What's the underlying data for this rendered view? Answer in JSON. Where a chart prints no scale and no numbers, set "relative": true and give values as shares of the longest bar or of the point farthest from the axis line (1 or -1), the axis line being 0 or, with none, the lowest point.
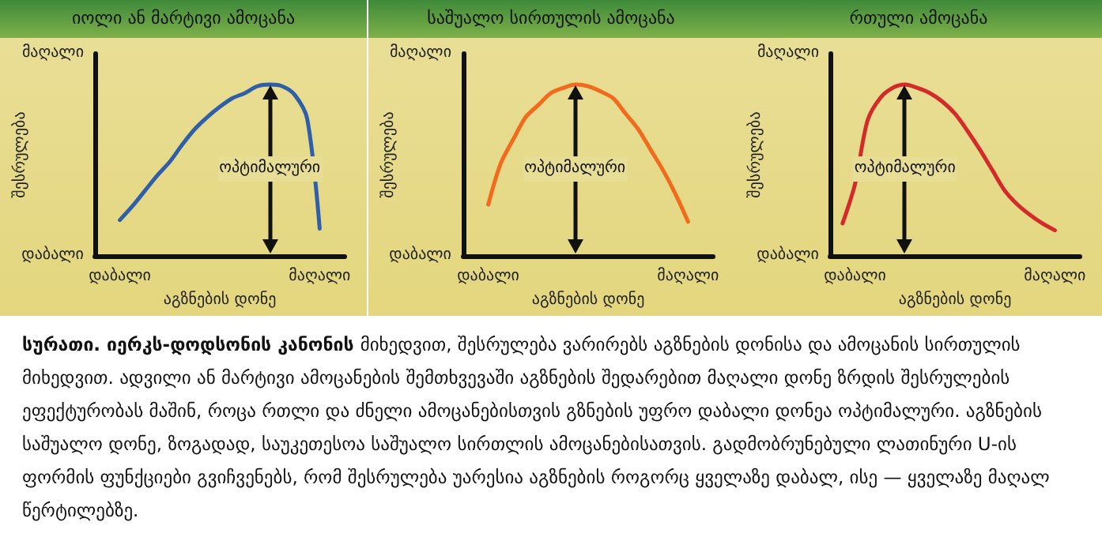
{
  "chart_data": [
    {
      "type": "line",
      "title": "იოლი ან მარტივი ამოცანა",
      "xlabel": "აგზნების დონე",
      "ylabel": "შესრულება",
      "relative": true,
      "categories": [
        null,
        null,
        "დაბალი",
        null,
        null,
        null,
        null,
        null,
        null,
        null,
        null,
        null,
        null,
        null,
        null,
        null,
        null,
        null,
        "მაღალი",
        null,
        null
      ],
      "series": [
        {
          "color": "#2f5fa8",
          "values": [
            null,
            null,
            0.21,
            0.29,
            0.38,
            0.47,
            0.55,
            0.65,
            0.74,
            0.81,
            0.87,
            0.92,
            0.95,
            0.99,
            1,
            0.99,
            0.94,
            0.8,
            0.16,
            null,
            null
          ]
        }
      ],
      "annotations": [
        "ოპტიმალური",
        "დაბალი",
        "მაღალი"
      ]
    },
    {
      "type": "line",
      "title": "საშუალო სირთულის ამოცანა",
      "xlabel": "აგზნების დონე",
      "ylabel": "შესრულება",
      "relative": true,
      "categories": [
        null,
        null,
        "დაბალი",
        null,
        null,
        null,
        null,
        null,
        null,
        null,
        null,
        null,
        null,
        null,
        null,
        null,
        null,
        null,
        "მაღალი",
        null,
        null
      ],
      "series": [
        {
          "color": "#f26b1d",
          "values": [
            null,
            null,
            0.3,
            0.54,
            0.68,
            0.81,
            0.88,
            0.95,
            0.98,
            1,
            0.99,
            0.96,
            0.92,
            0.83,
            0.74,
            0.62,
            0.5,
            0.36,
            0.2,
            null,
            null
          ]
        }
      ],
      "annotations": [
        "ოპტიმალური",
        "დაბალი",
        "მაღალი"
      ]
    },
    {
      "type": "line",
      "title": "რთული ამოცანა",
      "xlabel": "აგზნების დონე",
      "ylabel": "შესრულება",
      "relative": true,
      "categories": [
        null,
        null,
        "დაბალი",
        null,
        null,
        null,
        null,
        null,
        null,
        null,
        null,
        null,
        null,
        null,
        null,
        null,
        null,
        null,
        "მაღალი",
        null,
        null
      ],
      "series": [
        {
          "color": "#d42a2a",
          "values": [
            null,
            0.19,
            0.42,
            0.79,
            0.92,
            0.98,
            1,
            0.98,
            0.95,
            0.9,
            0.83,
            0.73,
            0.62,
            0.5,
            0.38,
            0.3,
            0.24,
            0.19,
            0.15,
            null,
            null
          ]
        }
      ],
      "annotations": [
        "ოპტიმალური",
        "დაბალი",
        "მაღალი"
      ]
    },
    {
      "type": "other",
      "annotations": [
        "სურათი. იერკს-დოდსონის კანონის",
        "მიხედვით, შესრულება ვარირებს აგზნების დონისა და ამოცანის სირთულის მიხედვით. ადვილი ან მარტივი ამოცანების შემთხვევაში აგზნების შედარებით მაღალი დონე ზრდის შესრულების ეფექტურობას მაშინ, როცა რთლი და ძნელი ამოცანებისთვის გზნების უფრო დაბალი დონეა ოპტიმალური. აგზნების საშუალო დონე, ზოგადად, საუკეთესოა საშუალო სირთლის ამოცანებისათვის. გადმობრუნებული ლათინური U-ის ფორმის ფუნქციები გვიჩვენებს, რომ შესრულება უარესია აგზნების როგორც ყველაზე დაბალ, ისე — ყველაზე მაღალ წერტილებზე."
      ]
    }
  ]
}
